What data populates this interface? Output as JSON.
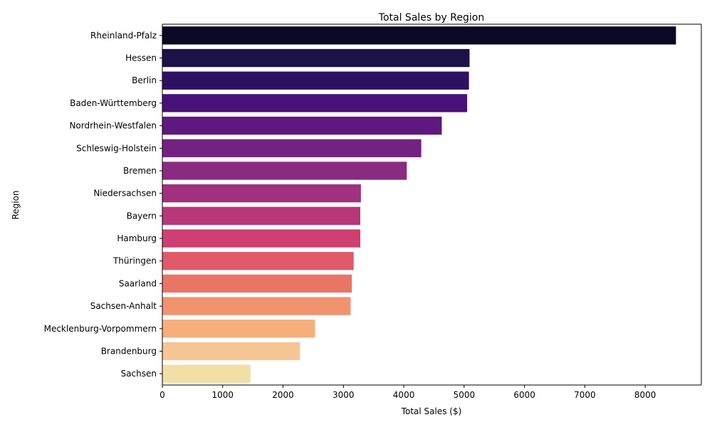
{
  "chart_data": {
    "type": "bar",
    "orientation": "horizontal",
    "title": "Total Sales by Region",
    "xlabel": "Total Sales ($)",
    "ylabel": "Region",
    "xlim": [
      0,
      8930
    ],
    "xticks": [
      0,
      1000,
      2000,
      3000,
      4000,
      5000,
      6000,
      7000,
      8000
    ],
    "grid": false,
    "palette": "magma",
    "categories": [
      "Rheinland-Pfalz",
      "Hessen",
      "Berlin",
      "Baden-Württemberg",
      "Nordrhein-Westfalen",
      "Schleswig-Holstein",
      "Bremen",
      "Niedersachsen",
      "Bayern",
      "Hamburg",
      "Thüringen",
      "Saarland",
      "Sachsen-Anhalt",
      "Mecklenburg-Vorpommern",
      "Brandenburg",
      "Sachsen"
    ],
    "values": [
      8510,
      5090,
      5080,
      5050,
      4630,
      4290,
      4050,
      3290,
      3280,
      3280,
      3170,
      3140,
      3120,
      2530,
      2280,
      1460
    ],
    "colors": [
      "#0a0822",
      "#1d1147",
      "#2f1163",
      "#4a1079",
      "#5f187f",
      "#742281",
      "#8a2a80",
      "#a1307e",
      "#b73779",
      "#cd4071",
      "#e05a68",
      "#ea7567",
      "#f1936e",
      "#f6af7b",
      "#f6c695",
      "#f3dea6"
    ]
  }
}
